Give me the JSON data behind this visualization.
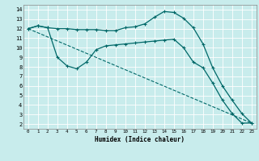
{
  "title": "",
  "xlabel": "Humidex (Indice chaleur)",
  "bg_color": "#c8ecec",
  "grid_color": "#ffffff",
  "line_color": "#006868",
  "xlim": [
    -0.5,
    23.5
  ],
  "ylim": [
    1.5,
    14.5
  ],
  "xticks": [
    0,
    1,
    2,
    3,
    4,
    5,
    6,
    7,
    8,
    9,
    10,
    11,
    12,
    13,
    14,
    15,
    16,
    17,
    18,
    19,
    20,
    21,
    22,
    23
  ],
  "yticks": [
    2,
    3,
    4,
    5,
    6,
    7,
    8,
    9,
    10,
    11,
    12,
    13,
    14
  ],
  "curve1_x": [
    0,
    1,
    2,
    3,
    4,
    5,
    6,
    7,
    8,
    9,
    10,
    11,
    12,
    13,
    14,
    15,
    16,
    17,
    18,
    19,
    20,
    21,
    22,
    23
  ],
  "curve1_y": [
    12,
    12.3,
    12.1,
    12.0,
    12.0,
    11.9,
    11.9,
    11.9,
    11.8,
    11.8,
    12.1,
    12.2,
    12.5,
    13.2,
    13.8,
    13.7,
    13.1,
    12.1,
    10.4,
    7.9,
    6.0,
    4.5,
    3.1,
    2.1
  ],
  "curve2_x": [
    0,
    1,
    2,
    3,
    4,
    5,
    6,
    7,
    8,
    9,
    10,
    11,
    12,
    13,
    14,
    15,
    16,
    17,
    18,
    19,
    20,
    21,
    22,
    23
  ],
  "curve2_y": [
    12,
    12.3,
    12.1,
    9.0,
    8.1,
    7.8,
    8.5,
    9.8,
    10.2,
    10.3,
    10.4,
    10.5,
    10.6,
    10.7,
    10.8,
    10.9,
    10.0,
    8.5,
    7.9,
    6.3,
    4.5,
    3.1,
    2.1,
    2.1
  ],
  "curve3_x": [
    0,
    23
  ],
  "curve3_y": [
    12,
    2.1
  ]
}
